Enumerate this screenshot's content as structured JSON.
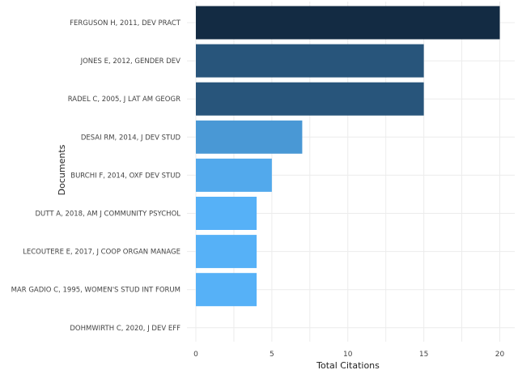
{
  "chart_data": {
    "type": "bar",
    "orientation": "horizontal",
    "categories": [
      "FERGUSON H, 2011, DEV PRACT",
      "JONES E, 2012, GENDER DEV",
      "RADEL C, 2005, J LAT AM GEOGR",
      "DESAI RM, 2014, J DEV STUD",
      "BURCHI F, 2014, OXF DEV STUD",
      "DUTT A, 2018, AM J COMMUNITY PSYCHOL",
      "LECOUTERE E, 2017, J COOP ORGAN MANAGE",
      "MAR GADIO C, 1995, WOMEN'S STUD INT FORUM",
      "DOHMWIRTH C, 2020, J DEV EFF"
    ],
    "values": [
      20,
      15,
      15,
      7,
      5,
      4,
      4,
      4,
      0
    ],
    "xlabel": "Total Citations",
    "ylabel": "Documents",
    "xlim": [
      0,
      20
    ],
    "xticks": [
      0,
      5,
      10,
      15,
      20
    ],
    "grid": true,
    "color_scale": [
      "#56b1f7",
      "#132b43"
    ]
  }
}
